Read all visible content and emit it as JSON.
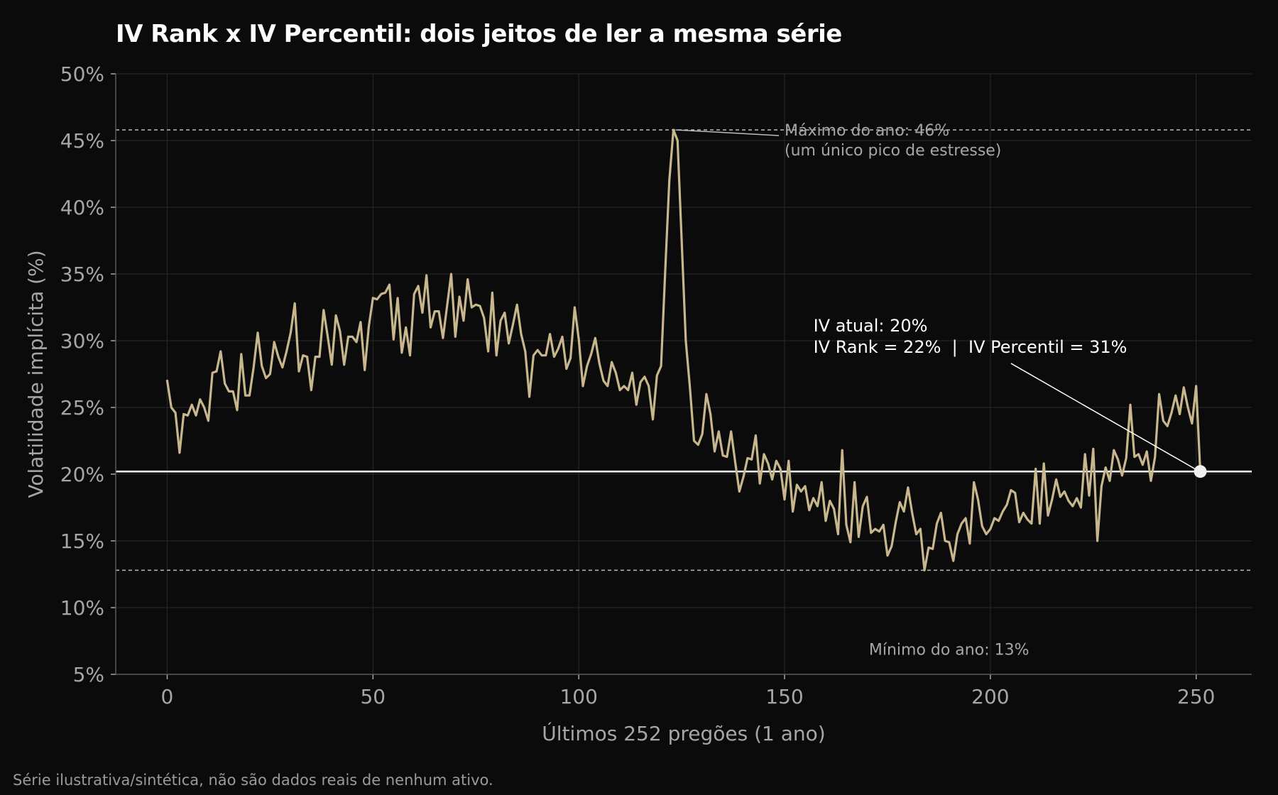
{
  "title": "IV Rank x IV Percentil: dois jeitos de ler a mesma série",
  "footnote": "Série ilustrativa/sintética, não são dados reais de nenhum ativo.",
  "colors": {
    "background": "#0b0b0b",
    "series": "#c8b68c",
    "current_line": "#ffffff",
    "reference_lines": "#bdbdbd",
    "grid": "#2a2a2a",
    "axis_text": "#a6a6a6"
  },
  "chart_data": {
    "type": "line",
    "title": "IV Rank x IV Percentil: dois jeitos de ler a mesma série",
    "xlabel": "Últimos 252 pregões (1 ano)",
    "ylabel": "Volatilidade implícita (%)",
    "xlim": [
      -12.5,
      263.5
    ],
    "ylim": [
      5,
      50
    ],
    "xticks": [
      0,
      50,
      100,
      150,
      200,
      250
    ],
    "yticks": [
      5,
      10,
      15,
      20,
      25,
      30,
      35,
      40,
      45,
      50
    ],
    "ytick_labels": [
      "5%",
      "10%",
      "15%",
      "20%",
      "25%",
      "30%",
      "35%",
      "40%",
      "45%",
      "50%"
    ],
    "grid": true,
    "series": [
      {
        "values": [
          27,
          25,
          24.6,
          21.6,
          24.5,
          24.4,
          25.2,
          24.4,
          25.6,
          25,
          24,
          27.6,
          27.7,
          29.2,
          26.8,
          26.2,
          26.2,
          24.8,
          29,
          25.9,
          25.9,
          28,
          30.6,
          28.1,
          27.2,
          27.5,
          29.9,
          28.8,
          28,
          29.2,
          30.6,
          32.8,
          27.7,
          28.9,
          28.8,
          26.3,
          28.8,
          28.8,
          32.3,
          30.3,
          28.2,
          31.9,
          30.7,
          28.2,
          30.3,
          30.3,
          29.9,
          31.4,
          27.8,
          31.1,
          33.2,
          33.1,
          33.5,
          33.6,
          34.2,
          30.1,
          33.2,
          29.1,
          31,
          28.9,
          33.5,
          34.1,
          32.1,
          34.9,
          31,
          32.2,
          32.2,
          30.2,
          32.6,
          35,
          30.3,
          33.3,
          31.5,
          34.6,
          32.5,
          32.7,
          32.6,
          31.7,
          29.2,
          33.6,
          28.9,
          31.5,
          32.1,
          29.8,
          31.2,
          32.7,
          30.5,
          29.2,
          25.8,
          28.9,
          29.3,
          28.9,
          28.9,
          30.5,
          28.8,
          29.4,
          30.3,
          27.9,
          28.7,
          32.5,
          30.1,
          26.6,
          28.1,
          29,
          30.2,
          28.3,
          27,
          26.6,
          28.4,
          27.6,
          26.3,
          26.6,
          26.3,
          27.6,
          25.2,
          26.9,
          27.3,
          26.6,
          24.1,
          27.4,
          28.1,
          35.2,
          42,
          45.8,
          45,
          37.5,
          30,
          26.5,
          22.5,
          22.2,
          23,
          26,
          24.5,
          21.7,
          23.2,
          21.4,
          21.3,
          23.2,
          20.9,
          18.7,
          19.8,
          21.2,
          21.1,
          22.9,
          19.3,
          21.5,
          20.8,
          19.6,
          21,
          20.4,
          18.1,
          21,
          17.2,
          19.2,
          18.7,
          19.1,
          17.3,
          18.2,
          17.6,
          19.4,
          16.5,
          18,
          17.4,
          15.5,
          21.8,
          16.2,
          14.9,
          19.4,
          15.3,
          17.6,
          18.3,
          15.6,
          15.9,
          15.7,
          16.2,
          13.9,
          14.6,
          16.4,
          17.9,
          17.2,
          19,
          17.1,
          15.5,
          15.9,
          12.8,
          14.5,
          14.4,
          16.3,
          17.1,
          15,
          14.9,
          13.5,
          15.5,
          16.3,
          16.7,
          14.8,
          19.4,
          18.1,
          16.1,
          15.5,
          15.9,
          16.7,
          16.5,
          17.2,
          17.7,
          18.8,
          18.6,
          16.4,
          17.1,
          16.6,
          16.3,
          20.4,
          16.3,
          20.8,
          16.9,
          18.1,
          19.6,
          18.3,
          18.7,
          18,
          17.6,
          18.2,
          17.5,
          21.5,
          18.4,
          21.9,
          15,
          19.1,
          20.5,
          19.5,
          21.8,
          21.1,
          19.9,
          21.2,
          25.2,
          21.3,
          21.5,
          20.7,
          21.7,
          19.5,
          21.3,
          26,
          24,
          23.6,
          24.6,
          25.9,
          24.5,
          26.5,
          25,
          23.8,
          26.6,
          20.2
        ]
      }
    ],
    "reference_lines": [
      {
        "kind": "current",
        "y": 20.2
      },
      {
        "kind": "max",
        "y": 45.8
      },
      {
        "kind": "min",
        "y": 12.8
      }
    ],
    "current_point": {
      "x": 251,
      "y": 20.2
    },
    "annotations": {
      "max_line1": "Máximo do ano: 46%",
      "max_line2": "(um único pico de estresse)",
      "min_label": "Mínimo do ano: 13%",
      "current_line1": "IV atual: 20%",
      "current_line2": "IV Rank = 22%  |  IV Percentil = 31%"
    }
  }
}
